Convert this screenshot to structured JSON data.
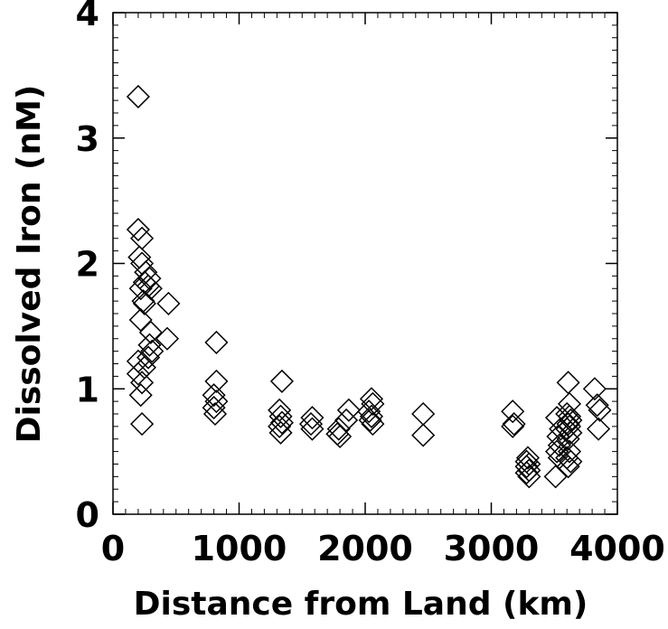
{
  "chart_data": {
    "type": "scatter",
    "title": "",
    "xlabel": "Distance from Land (km)",
    "ylabel": "Dissolved Iron (nM)",
    "xlim": [
      0,
      4000
    ],
    "ylim": [
      0,
      4
    ],
    "xticks": [
      "0",
      "1000",
      "2000",
      "3000",
      "4000"
    ],
    "yticks": [
      "0",
      "1",
      "2",
      "3",
      "4"
    ],
    "grid": false,
    "marker": "diamond-open",
    "color": "#000000",
    "series": [
      {
        "points": [
          [
            200,
            3.33
          ],
          [
            200,
            2.27
          ],
          [
            230,
            2.2
          ],
          [
            210,
            2.05
          ],
          [
            230,
            2.0
          ],
          [
            260,
            1.93
          ],
          [
            290,
            1.88
          ],
          [
            250,
            1.85
          ],
          [
            280,
            1.82
          ],
          [
            300,
            1.8
          ],
          [
            220,
            1.8
          ],
          [
            240,
            1.7
          ],
          [
            250,
            1.68
          ],
          [
            440,
            1.68
          ],
          [
            220,
            1.55
          ],
          [
            300,
            1.45
          ],
          [
            430,
            1.4
          ],
          [
            290,
            1.35
          ],
          [
            310,
            1.3
          ],
          [
            280,
            1.25
          ],
          [
            200,
            1.22
          ],
          [
            250,
            1.17
          ],
          [
            200,
            1.12
          ],
          [
            230,
            1.05
          ],
          [
            220,
            0.95
          ],
          [
            230,
            0.72
          ],
          [
            820,
            1.37
          ],
          [
            820,
            1.06
          ],
          [
            800,
            0.95
          ],
          [
            820,
            0.9
          ],
          [
            800,
            0.85
          ],
          [
            810,
            0.8
          ],
          [
            1340,
            1.06
          ],
          [
            1320,
            0.83
          ],
          [
            1330,
            0.78
          ],
          [
            1340,
            0.73
          ],
          [
            1320,
            0.7
          ],
          [
            1330,
            0.65
          ],
          [
            1580,
            0.77
          ],
          [
            1570,
            0.72
          ],
          [
            1580,
            0.68
          ],
          [
            1790,
            0.68
          ],
          [
            1780,
            0.64
          ],
          [
            1800,
            0.62
          ],
          [
            1870,
            0.83
          ],
          [
            1850,
            0.75
          ],
          [
            2050,
            0.92
          ],
          [
            2060,
            0.88
          ],
          [
            2030,
            0.82
          ],
          [
            2050,
            0.78
          ],
          [
            2040,
            0.75
          ],
          [
            2060,
            0.72
          ],
          [
            2460,
            0.8
          ],
          [
            2460,
            0.63
          ],
          [
            3170,
            0.82
          ],
          [
            3180,
            0.72
          ],
          [
            3170,
            0.7
          ],
          [
            3290,
            0.45
          ],
          [
            3280,
            0.42
          ],
          [
            3300,
            0.4
          ],
          [
            3280,
            0.38
          ],
          [
            3300,
            0.35
          ],
          [
            3280,
            0.33
          ],
          [
            3300,
            0.3
          ],
          [
            3520,
            0.77
          ],
          [
            3550,
            0.68
          ],
          [
            3530,
            0.62
          ],
          [
            3540,
            0.55
          ],
          [
            3520,
            0.5
          ],
          [
            3540,
            0.45
          ],
          [
            3510,
            0.3
          ],
          [
            3610,
            1.05
          ],
          [
            3620,
            0.88
          ],
          [
            3600,
            0.8
          ],
          [
            3620,
            0.78
          ],
          [
            3630,
            0.75
          ],
          [
            3610,
            0.72
          ],
          [
            3620,
            0.7
          ],
          [
            3600,
            0.68
          ],
          [
            3630,
            0.65
          ],
          [
            3610,
            0.6
          ],
          [
            3620,
            0.5
          ],
          [
            3600,
            0.45
          ],
          [
            3630,
            0.42
          ],
          [
            3610,
            0.38
          ],
          [
            3820,
            1.0
          ],
          [
            3840,
            0.87
          ],
          [
            3860,
            0.83
          ],
          [
            3850,
            0.68
          ]
        ]
      }
    ]
  }
}
